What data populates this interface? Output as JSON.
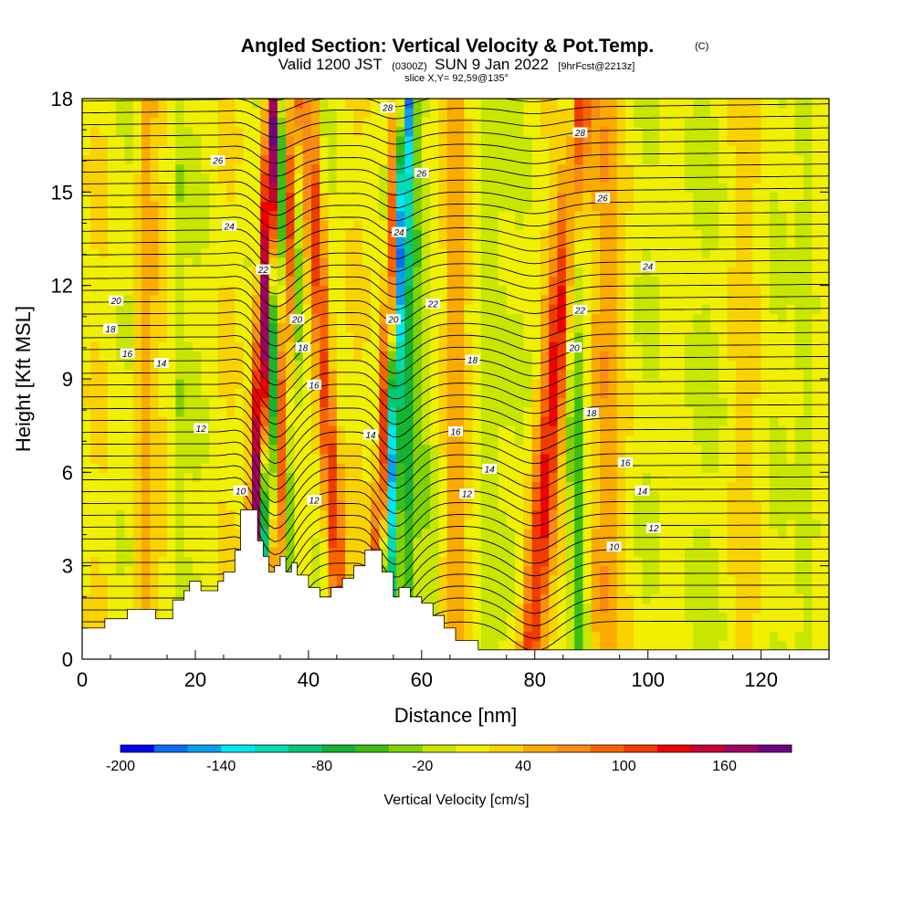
{
  "title": "Angled Section: Vertical Velocity & Pot.Temp.",
  "title_unit": "(C)",
  "subtitle_main_a": "Valid 1200 JST",
  "subtitle_utc": "(0300Z)",
  "subtitle_main_b": "SUN 9 Jan 2022",
  "subtitle_fcst": "[9hrFcst@2213z]",
  "slice_label": "slice X,Y= 92,59@135°",
  "chart_data": {
    "type": "heatmap",
    "xlabel": "Distance [nm]",
    "ylabel": "Height [Kft MSL]",
    "xlim": [
      0,
      132
    ],
    "ylim": [
      0,
      18
    ],
    "x_ticks": [
      "0",
      "20",
      "40",
      "60",
      "80",
      "100",
      "120"
    ],
    "y_ticks": [
      "0",
      "3",
      "6",
      "9",
      "12",
      "15",
      "18"
    ],
    "x_tick_values": [
      0,
      20,
      40,
      60,
      80,
      100,
      120
    ],
    "y_tick_values": [
      0,
      3,
      6,
      9,
      12,
      15,
      18
    ],
    "grid": false,
    "colorbar": {
      "label": "Vertical Velocity [cm/s]",
      "min": -200,
      "max": 200,
      "step": 20,
      "tick_labels": [
        "-200",
        "-140",
        "-80",
        "-20",
        "40",
        "100",
        "160"
      ],
      "tick_values": [
        -200,
        -140,
        -80,
        -20,
        40,
        100,
        160
      ],
      "colors": [
        "#0000f0",
        "#0a6ef0",
        "#0aa0f0",
        "#00e6f0",
        "#00dcb4",
        "#00c878",
        "#14b432",
        "#3cbe14",
        "#82d200",
        "#c8e600",
        "#f0f000",
        "#fad200",
        "#faaa00",
        "#fa8c14",
        "#fa6400",
        "#f03c00",
        "#f00000",
        "#c80032",
        "#a00064",
        "#6e0082"
      ]
    },
    "terrain": [
      [
        0,
        1.0
      ],
      [
        4,
        1.0
      ],
      [
        4,
        1.3
      ],
      [
        8,
        1.3
      ],
      [
        8,
        1.6
      ],
      [
        13,
        1.6
      ],
      [
        13,
        1.3
      ],
      [
        16,
        1.3
      ],
      [
        16,
        1.9
      ],
      [
        18,
        1.9
      ],
      [
        18,
        2.2
      ],
      [
        19,
        2.2
      ],
      [
        19,
        2.5
      ],
      [
        21,
        2.5
      ],
      [
        21,
        2.2
      ],
      [
        24,
        2.2
      ],
      [
        24,
        2.5
      ],
      [
        25,
        2.5
      ],
      [
        25,
        2.8
      ],
      [
        27,
        2.8
      ],
      [
        27,
        3.5
      ],
      [
        28,
        3.5
      ],
      [
        28,
        4.8
      ],
      [
        31,
        4.8
      ],
      [
        31,
        3.8
      ],
      [
        32,
        3.8
      ],
      [
        32,
        3.3
      ],
      [
        33,
        3.3
      ],
      [
        33,
        2.8
      ],
      [
        34,
        2.8
      ],
      [
        34,
        3.0
      ],
      [
        35,
        3.0
      ],
      [
        35,
        3.3
      ],
      [
        36,
        3.3
      ],
      [
        36,
        2.8
      ],
      [
        37,
        2.8
      ],
      [
        37,
        3.1
      ],
      [
        38,
        3.1
      ],
      [
        38,
        2.7
      ],
      [
        40,
        2.7
      ],
      [
        40,
        2.3
      ],
      [
        42,
        2.3
      ],
      [
        42,
        2.0
      ],
      [
        44,
        2.0
      ],
      [
        44,
        2.3
      ],
      [
        46,
        2.3
      ],
      [
        46,
        2.6
      ],
      [
        48,
        2.6
      ],
      [
        48,
        3.0
      ],
      [
        50,
        3.0
      ],
      [
        50,
        3.5
      ],
      [
        53,
        3.5
      ],
      [
        53,
        2.8
      ],
      [
        55,
        2.8
      ],
      [
        55,
        2.0
      ],
      [
        56,
        2.0
      ],
      [
        56,
        2.3
      ],
      [
        58,
        2.3
      ],
      [
        58,
        2.0
      ],
      [
        60,
        2.0
      ],
      [
        60,
        1.8
      ],
      [
        62,
        1.8
      ],
      [
        62,
        1.4
      ],
      [
        64,
        1.4
      ],
      [
        64,
        1.0
      ],
      [
        66,
        1.0
      ],
      [
        66,
        0.6
      ],
      [
        70,
        0.6
      ],
      [
        70,
        0.3
      ],
      [
        132,
        0.3
      ]
    ],
    "isentropes_K": [
      10,
      12,
      14,
      16,
      18,
      20,
      22,
      24,
      26,
      28
    ],
    "isentrope_labels": [
      {
        "text": "10",
        "x": 28,
        "y": 5.4
      },
      {
        "text": "12",
        "x": 21,
        "y": 7.4
      },
      {
        "text": "12",
        "x": 41,
        "y": 5.1
      },
      {
        "text": "12",
        "x": 68,
        "y": 5.3
      },
      {
        "text": "12",
        "x": 101,
        "y": 4.2
      },
      {
        "text": "10",
        "x": 94,
        "y": 3.6
      },
      {
        "text": "14",
        "x": 14,
        "y": 9.5
      },
      {
        "text": "14",
        "x": 51,
        "y": 7.2
      },
      {
        "text": "14",
        "x": 72,
        "y": 6.1
      },
      {
        "text": "14",
        "x": 99,
        "y": 5.4
      },
      {
        "text": "16",
        "x": 8,
        "y": 9.8
      },
      {
        "text": "16",
        "x": 41,
        "y": 8.8
      },
      {
        "text": "16",
        "x": 66,
        "y": 7.3
      },
      {
        "text": "16",
        "x": 96,
        "y": 6.3
      },
      {
        "text": "18",
        "x": 5,
        "y": 10.6
      },
      {
        "text": "18",
        "x": 39,
        "y": 10.0
      },
      {
        "text": "18",
        "x": 69,
        "y": 9.6
      },
      {
        "text": "18",
        "x": 90,
        "y": 7.9
      },
      {
        "text": "20",
        "x": 6,
        "y": 11.5
      },
      {
        "text": "20",
        "x": 38,
        "y": 10.9
      },
      {
        "text": "20",
        "x": 55,
        "y": 10.9
      },
      {
        "text": "20",
        "x": 87,
        "y": 10.0
      },
      {
        "text": "22",
        "x": 32,
        "y": 12.5
      },
      {
        "text": "22",
        "x": 62,
        "y": 11.4
      },
      {
        "text": "22",
        "x": 88,
        "y": 11.2
      },
      {
        "text": "24",
        "x": 26,
        "y": 13.9
      },
      {
        "text": "24",
        "x": 56,
        "y": 13.7
      },
      {
        "text": "24",
        "x": 100,
        "y": 12.6
      },
      {
        "text": "26",
        "x": 24,
        "y": 16.0
      },
      {
        "text": "26",
        "x": 60,
        "y": 15.6
      },
      {
        "text": "26",
        "x": 92,
        "y": 14.8
      },
      {
        "text": "28",
        "x": 54,
        "y": 17.7
      },
      {
        "text": "28",
        "x": 88,
        "y": 16.9
      }
    ]
  }
}
